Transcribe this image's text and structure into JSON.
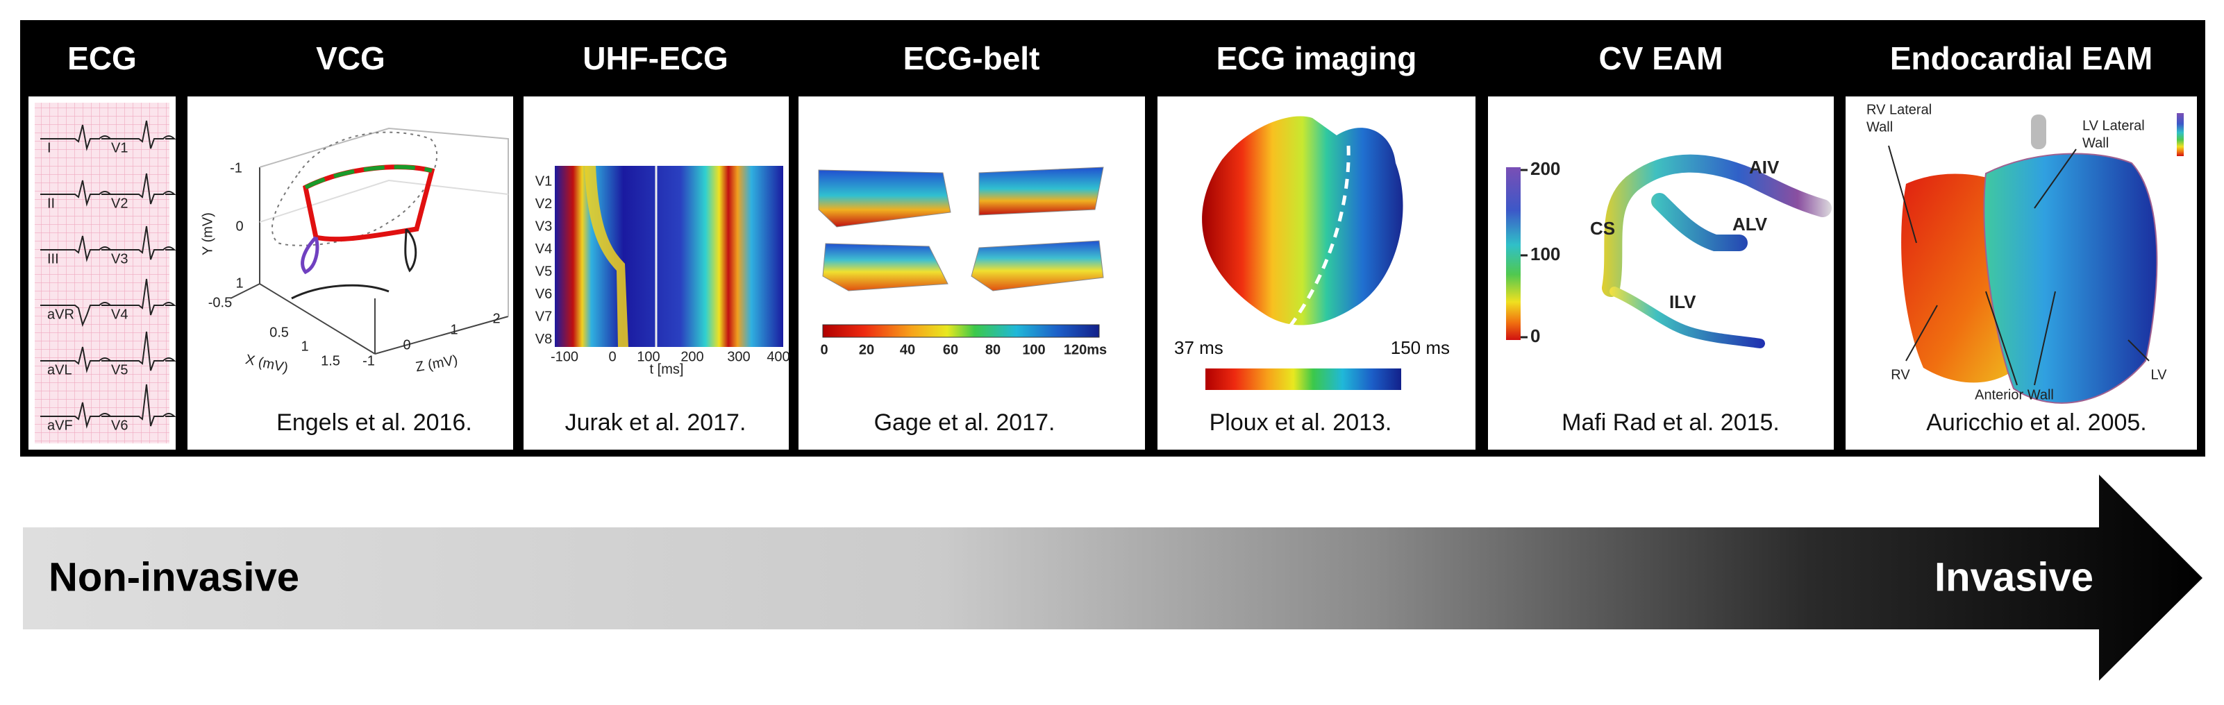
{
  "panels": [
    {
      "title": "ECG",
      "leads": [
        "I",
        "II",
        "III",
        "aVR",
        "aVL",
        "aVF",
        "V1",
        "V2",
        "V3",
        "V4",
        "V5",
        "V6"
      ]
    },
    {
      "title": "VCG",
      "citation": "Engels et al. 2016.",
      "axis_labels": [
        "Y (mV)",
        "X (mV)",
        "Z (mV)"
      ],
      "y_tick_labels": [
        "-1",
        "0",
        "1"
      ],
      "x_tick_labels": [
        "-0.5",
        "0.5",
        "1",
        "1.5"
      ],
      "z_tick_labels": [
        "-1",
        "0",
        "1",
        "2"
      ]
    },
    {
      "title": "UHF-ECG",
      "citation": "Jurak et al. 2017.",
      "leads": [
        "V1",
        "V2",
        "V3",
        "V4",
        "V5",
        "V6",
        "V7",
        "V8"
      ],
      "tick_labels": [
        "-100",
        "0",
        "100",
        "200",
        "300",
        "400"
      ],
      "axis_label": "t [ms]"
    },
    {
      "title": "ECG-belt",
      "citation": "Gage et al. 2017.",
      "colorbar_labels": [
        "0",
        "20",
        "40",
        "60",
        "80",
        "100",
        "120ms"
      ]
    },
    {
      "title": "ECG imaging",
      "citation": "Ploux et al. 2013.",
      "colorbar_labels": [
        "37 ms",
        "150 ms"
      ]
    },
    {
      "title": "CV EAM",
      "citation": "Mafi Rad et al. 2015.",
      "colorbar_labels": [
        "200",
        "100",
        "0"
      ],
      "labels": [
        "AIV",
        "CS",
        "ALV",
        "ILV"
      ]
    },
    {
      "title": "Endocardial EAM",
      "citation": "Auricchio et al. 2005.",
      "labels": [
        [
          "RV Lateral",
          "Wall"
        ],
        [
          "LV Lateral",
          "Wall"
        ],
        [
          "RV"
        ],
        [
          "Anterior Wall"
        ],
        [
          "LV"
        ]
      ]
    }
  ],
  "arrow": {
    "left_label": "Non-invasive",
    "right_label": "Invasive"
  }
}
